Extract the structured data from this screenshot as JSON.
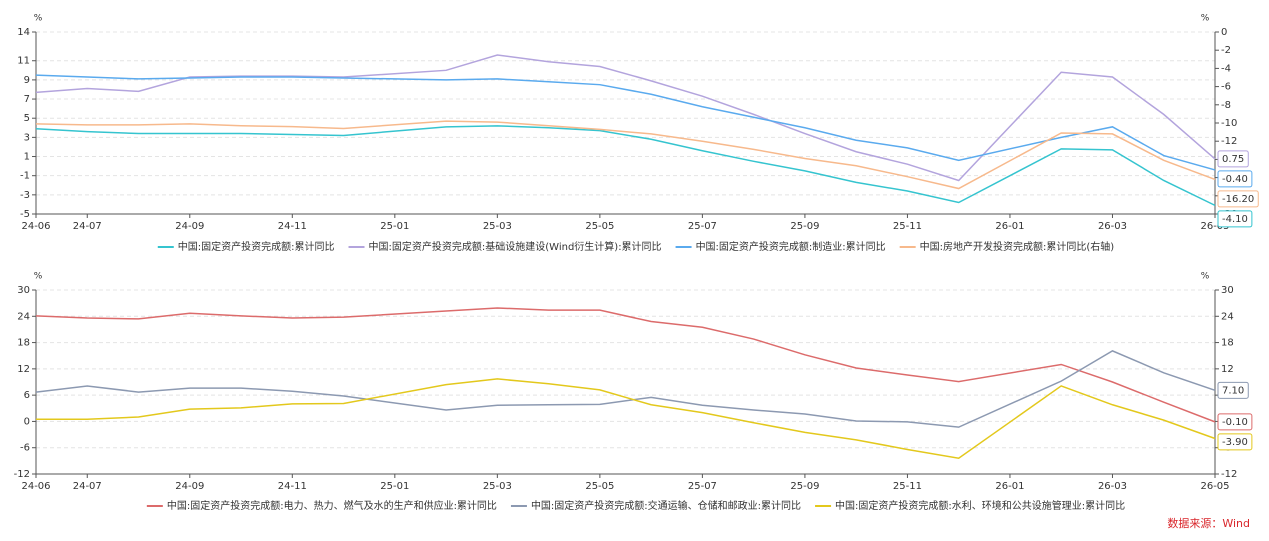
{
  "chart_data": [
    {
      "type": "line",
      "ylabel": "%",
      "y2label": "%",
      "x": [
        "24-06",
        "24-07",
        "24-08",
        "24-09",
        "24-10",
        "24-11",
        "24-12",
        "25-02",
        "25-03",
        "25-04",
        "25-05",
        "25-06",
        "25-07",
        "25-08",
        "25-09",
        "25-10",
        "25-11",
        "25-12",
        "26-02",
        "26-03",
        "26-04",
        "26-05"
      ],
      "xlim": [
        "24-06",
        "26-05"
      ],
      "xticks": [
        "24-06",
        "24-07",
        "24-09",
        "24-11",
        "25-01",
        "25-03",
        "25-05",
        "25-07",
        "25-09",
        "25-11",
        "26-01",
        "26-03",
        "26-05"
      ],
      "ylim": [
        -5,
        14
      ],
      "yticks": [
        -5,
        -3,
        -1,
        1,
        3,
        5,
        7,
        9,
        11,
        14
      ],
      "y2lim": [
        -20,
        0
      ],
      "y2ticks": [
        -20,
        -18,
        -16,
        -14,
        -12,
        -10,
        -8,
        -6,
        -4,
        -2,
        0
      ],
      "grid": true,
      "series": [
        {
          "name": "中国:固定资产投资完成额:累计同比",
          "color": "#35c4cf",
          "values": [
            3.9,
            3.6,
            3.4,
            3.4,
            3.4,
            3.3,
            3.2,
            4.1,
            4.2,
            4.0,
            3.7,
            2.8,
            1.6,
            0.5,
            -0.5,
            -1.7,
            -2.6,
            -3.8,
            1.8,
            1.7,
            -1.5,
            -4.1
          ],
          "value_labels": [
            null,
            null,
            null,
            null,
            null,
            null,
            null,
            null,
            null,
            null,
            null,
            null,
            null,
            null,
            null,
            null,
            null,
            null,
            null,
            null,
            null,
            "-4.10"
          ]
        },
        {
          "name": "中国:固定资产投资完成额:基础设施建设(Wind衍生计算):累计同比",
          "color": "#b3a4dd",
          "values": [
            7.7,
            8.1,
            7.8,
            9.3,
            9.4,
            9.4,
            9.3,
            10.0,
            11.6,
            10.9,
            10.4,
            8.9,
            7.3,
            5.4,
            3.4,
            1.5,
            0.2,
            -1.5,
            9.8,
            9.3,
            5.4,
            0.75
          ],
          "value_labels": [
            null,
            null,
            null,
            null,
            null,
            null,
            null,
            null,
            null,
            null,
            null,
            null,
            null,
            null,
            null,
            null,
            null,
            null,
            null,
            null,
            null,
            "0.75"
          ]
        },
        {
          "name": "中国:固定资产投资完成额:制造业:累计同比",
          "color": "#5aaaee",
          "values": [
            9.5,
            9.3,
            9.1,
            9.2,
            9.3,
            9.3,
            9.2,
            9.0,
            9.1,
            8.8,
            8.5,
            7.5,
            6.2,
            5.1,
            4.0,
            2.7,
            1.9,
            0.6,
            3.0,
            4.1,
            1.1,
            -0.4
          ],
          "value_labels": [
            null,
            null,
            null,
            null,
            null,
            null,
            null,
            null,
            null,
            null,
            null,
            null,
            null,
            null,
            null,
            null,
            null,
            null,
            null,
            null,
            null,
            "-0.40"
          ]
        },
        {
          "name": "中国:房地产开发投资完成额:累计同比(右轴)",
          "color": "#f7b98c",
          "axis": "y2",
          "values": [
            -10.1,
            -10.2,
            -10.2,
            -10.1,
            -10.3,
            -10.4,
            -10.6,
            -9.8,
            -9.9,
            -10.3,
            -10.7,
            -11.2,
            -12.0,
            -12.9,
            -13.9,
            -14.7,
            -15.9,
            -17.2,
            -11.1,
            -11.2,
            -14.1,
            -16.2
          ],
          "value_labels": [
            null,
            null,
            null,
            null,
            null,
            null,
            null,
            null,
            null,
            null,
            null,
            null,
            null,
            null,
            null,
            null,
            null,
            null,
            null,
            null,
            null,
            "-16.20"
          ]
        }
      ]
    },
    {
      "type": "line",
      "ylabel": "%",
      "y2label": "%",
      "x": [
        "24-06",
        "24-07",
        "24-08",
        "24-09",
        "24-10",
        "24-11",
        "24-12",
        "25-02",
        "25-03",
        "25-04",
        "25-05",
        "25-06",
        "25-07",
        "25-08",
        "25-09",
        "25-10",
        "25-11",
        "25-12",
        "26-02",
        "26-03",
        "26-04",
        "26-05"
      ],
      "xlim": [
        "24-06",
        "26-05"
      ],
      "xticks": [
        "24-06",
        "24-07",
        "24-09",
        "24-11",
        "25-01",
        "25-03",
        "25-05",
        "25-07",
        "25-09",
        "25-11",
        "26-01",
        "26-03",
        "26-05"
      ],
      "ylim": [
        -12,
        30
      ],
      "yticks": [
        -12,
        -6,
        0,
        6,
        12,
        18,
        24,
        30
      ],
      "y2lim": [
        -12,
        30
      ],
      "y2ticks": [
        -12,
        -6,
        0,
        6,
        12,
        18,
        24,
        30
      ],
      "grid": true,
      "series": [
        {
          "name": "中国:固定资产投资完成额:电力、热力、燃气及水的生产和供应业:累计同比",
          "color": "#dc6b6b",
          "values": [
            24.1,
            23.6,
            23.4,
            24.7,
            24.1,
            23.6,
            23.8,
            25.2,
            25.9,
            25.4,
            25.4,
            22.8,
            21.5,
            18.8,
            15.2,
            12.2,
            10.6,
            9.1,
            13.0,
            9.0,
            4.4,
            -0.1
          ],
          "value_labels": [
            null,
            null,
            null,
            null,
            null,
            null,
            null,
            null,
            null,
            null,
            null,
            null,
            null,
            null,
            null,
            null,
            null,
            null,
            null,
            null,
            null,
            "-0.10"
          ]
        },
        {
          "name": "中国:固定资产投资完成额:交通运输、仓储和邮政业:累计同比",
          "color": "#8c99b1",
          "values": [
            6.7,
            8.1,
            6.7,
            7.6,
            7.6,
            6.9,
            5.8,
            2.6,
            3.7,
            3.8,
            3.9,
            5.5,
            3.7,
            2.6,
            1.7,
            0.1,
            -0.1,
            -1.3,
            9.2,
            16.1,
            11.1,
            7.1
          ],
          "value_labels": [
            null,
            null,
            null,
            null,
            null,
            null,
            null,
            null,
            null,
            null,
            null,
            null,
            null,
            null,
            null,
            null,
            null,
            null,
            null,
            null,
            null,
            "7.10"
          ]
        },
        {
          "name": "中国:固定资产投资完成额:水利、环境和公共设施管理业:累计同比",
          "color": "#e3c81c",
          "values": [
            0.5,
            0.5,
            1.0,
            2.8,
            3.1,
            4.0,
            4.1,
            8.4,
            9.7,
            8.6,
            7.2,
            3.8,
            2.0,
            -0.3,
            -2.5,
            -4.2,
            -6.4,
            -8.4,
            8.1,
            3.8,
            0.3,
            -3.9
          ],
          "value_labels": [
            null,
            null,
            null,
            null,
            null,
            null,
            null,
            null,
            null,
            null,
            null,
            null,
            null,
            null,
            null,
            null,
            null,
            null,
            null,
            null,
            null,
            "-3.90"
          ]
        }
      ]
    }
  ],
  "source": "数据来源：Wind"
}
